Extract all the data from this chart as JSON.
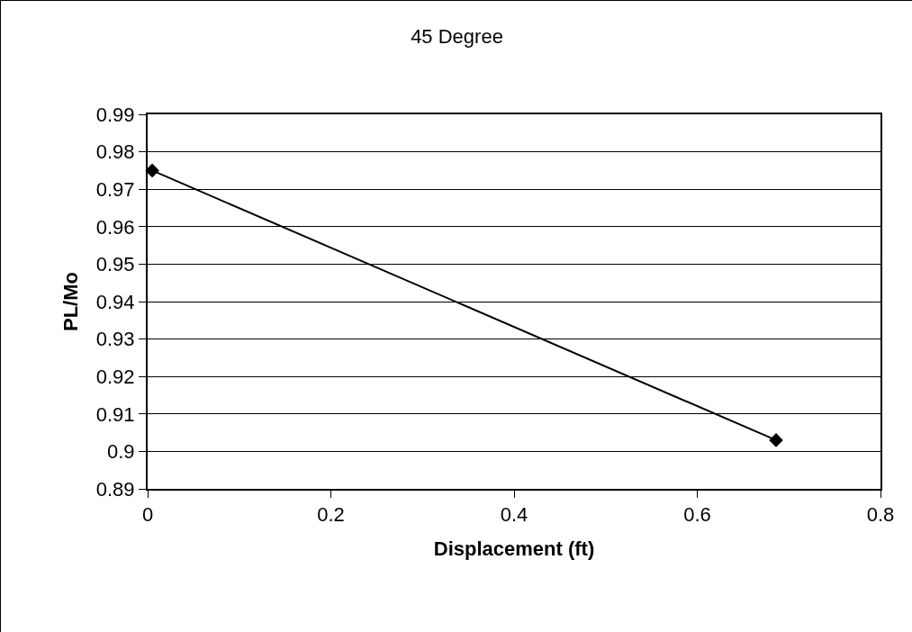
{
  "chart_data": {
    "type": "line",
    "title": "45 Degree",
    "xlabel": "Displacement (ft)",
    "ylabel": "PL/Mo",
    "x": [
      0.005,
      0.686
    ],
    "series": [
      {
        "color": "#000000",
        "values": [
          0.975,
          0.903
        ]
      }
    ],
    "xlim": [
      0,
      0.8
    ],
    "xticks": [
      0,
      0.2,
      0.4,
      0.6,
      0.8
    ],
    "ylim": [
      0.89,
      0.99
    ],
    "yticks": [
      0.89,
      0.9,
      0.91,
      0.92,
      0.93,
      0.94,
      0.95,
      0.96,
      0.97,
      0.98,
      0.99
    ],
    "grid": "y",
    "marker": "diamond",
    "line_style": "solid"
  }
}
